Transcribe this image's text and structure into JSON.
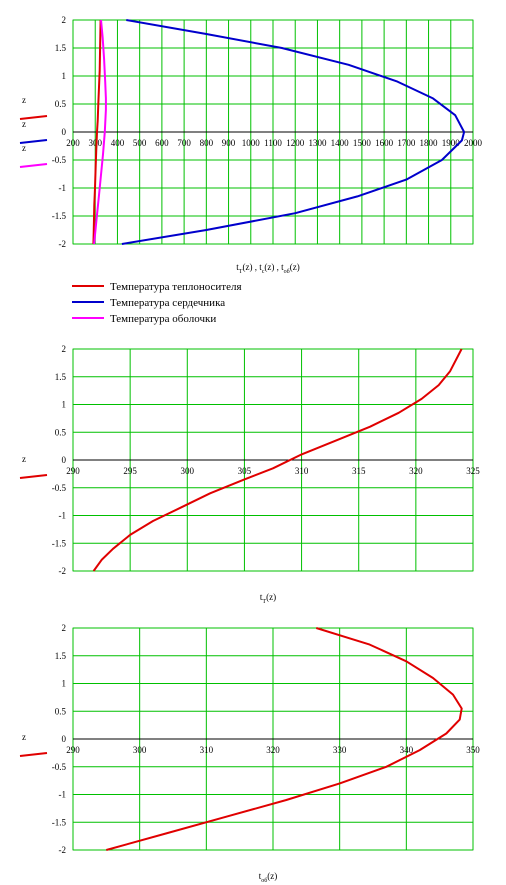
{
  "colors": {
    "grid": "#00c000",
    "axis": "#000000",
    "frame": "#808080",
    "red": "#e00000",
    "blue": "#0000cc",
    "magenta": "#ff00ff"
  },
  "chart_data": [
    {
      "type": "line",
      "xlabel_parts": [
        "t",
        "T",
        "(z) , t",
        "c",
        "(z) , t",
        "об",
        "(z)"
      ],
      "ylabel": "z",
      "xlim": [
        200,
        2000
      ],
      "ylim": [
        -2,
        2
      ],
      "xticks": [
        "200",
        "300",
        "400",
        "500",
        "600",
        "700",
        "800",
        "900",
        "1000",
        "1100",
        "1200",
        "1300",
        "1400",
        "1500",
        "1600",
        "1700",
        "1800",
        "1900",
        "2000"
      ],
      "yticks": [
        "2",
        "1.5",
        "1",
        "0.5",
        "0",
        "-0.5",
        "-1",
        "-1.5",
        "-2"
      ],
      "side_labels": [
        "z",
        "z",
        "z"
      ],
      "legend": [
        "Температура теплоносителя",
        "Температура сердечника",
        "Температура оболочки"
      ],
      "series": [
        {
          "name": "Температура теплоносителя",
          "color": "red",
          "x": [
            292,
            293,
            296,
            299,
            302,
            305,
            308,
            311,
            314,
            317,
            320,
            322,
            324
          ],
          "y": [
            -2,
            -1.8,
            -1.3,
            -1.0,
            -0.6,
            -0.3,
            0.0,
            0.2,
            0.5,
            0.8,
            1.1,
            1.5,
            2.0
          ]
        },
        {
          "name": "Температура сердечника",
          "color": "blue",
          "x": [
            420,
            800,
            1200,
            1480,
            1700,
            1860,
            1950,
            1960,
            1920,
            1820,
            1660,
            1440,
            1140,
            800,
            440
          ],
          "y": [
            -2,
            -1.75,
            -1.45,
            -1.15,
            -0.85,
            -0.5,
            -0.15,
            0.0,
            0.3,
            0.6,
            0.9,
            1.2,
            1.5,
            1.75,
            2.0
          ]
        },
        {
          "name": "Температура оболочки",
          "color": "magenta",
          "x": [
            295,
            305,
            315,
            325,
            335,
            343,
            348,
            348,
            345,
            340,
            333,
            326
          ],
          "y": [
            -2,
            -1.6,
            -1.2,
            -0.8,
            -0.4,
            0.0,
            0.4,
            0.6,
            0.9,
            1.3,
            1.7,
            2.0
          ]
        }
      ]
    },
    {
      "type": "line",
      "xlabel_parts": [
        "t",
        "T",
        "(z)"
      ],
      "ylabel": "z",
      "xlim": [
        290,
        325
      ],
      "ylim": [
        -2,
        2
      ],
      "xticks": [
        "290",
        "295",
        "300",
        "305",
        "310",
        "315",
        "320",
        "325"
      ],
      "yticks": [
        "2",
        "1.5",
        "1",
        "0.5",
        "0",
        "-0.5",
        "-1",
        "-1.5",
        "-2"
      ],
      "side_labels": [
        "z"
      ],
      "series": [
        {
          "color": "red",
          "x": [
            291.8,
            292.5,
            293.5,
            295,
            297,
            299.5,
            302,
            305,
            307.5,
            310,
            313,
            316,
            318.5,
            320.5,
            322,
            323,
            324
          ],
          "y": [
            -2,
            -1.8,
            -1.6,
            -1.35,
            -1.1,
            -0.85,
            -0.6,
            -0.35,
            -0.15,
            0.1,
            0.35,
            0.6,
            0.85,
            1.1,
            1.35,
            1.6,
            2.0
          ]
        }
      ]
    },
    {
      "type": "line",
      "xlabel_parts": [
        "t",
        "об",
        "(z)"
      ],
      "ylabel": "z",
      "xlim": [
        290,
        350
      ],
      "ylim": [
        -2,
        2
      ],
      "xticks": [
        "290",
        "300",
        "310",
        "320",
        "330",
        "340",
        "350"
      ],
      "yticks": [
        "2",
        "1.5",
        "1",
        "0.5",
        "0",
        "-0.5",
        "-1",
        "-1.5",
        "-2"
      ],
      "side_labels": [
        "z"
      ],
      "series": [
        {
          "color": "red",
          "x": [
            295,
            304,
            313,
            322,
            330,
            337,
            342,
            346,
            348,
            348.3,
            347,
            344,
            340,
            334.5,
            326.5
          ],
          "y": [
            -2,
            -1.7,
            -1.4,
            -1.1,
            -0.8,
            -0.5,
            -0.2,
            0.1,
            0.35,
            0.55,
            0.8,
            1.1,
            1.4,
            1.7,
            2.0
          ]
        }
      ]
    }
  ]
}
